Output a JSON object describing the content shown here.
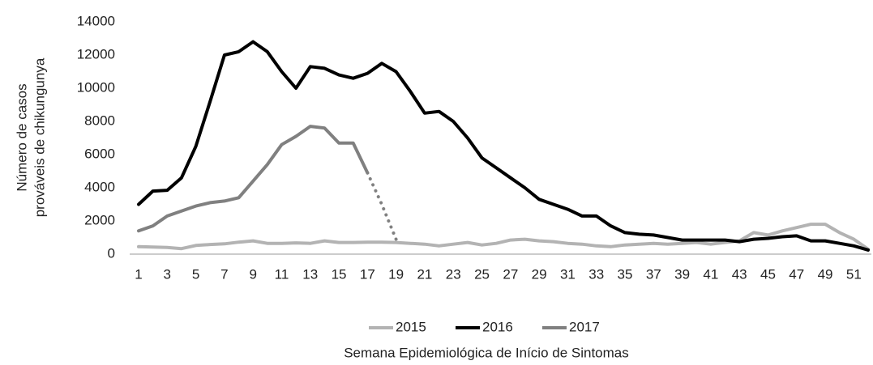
{
  "chart_data": {
    "type": "line",
    "ylabel": [
      "Número de casos",
      "prováveis de chikungunya"
    ],
    "xlabel": "Semana Epidemiológica de Início de Sintomas",
    "x": [
      1,
      2,
      3,
      4,
      5,
      6,
      7,
      8,
      9,
      10,
      11,
      12,
      13,
      14,
      15,
      16,
      17,
      18,
      19,
      20,
      21,
      22,
      23,
      24,
      25,
      26,
      27,
      28,
      29,
      30,
      31,
      32,
      33,
      34,
      35,
      36,
      37,
      38,
      39,
      40,
      41,
      42,
      43,
      44,
      45,
      46,
      47,
      48,
      49,
      50,
      51,
      52
    ],
    "xlim": [
      1,
      52
    ],
    "xticks": [
      1,
      3,
      5,
      7,
      9,
      11,
      13,
      15,
      17,
      19,
      21,
      23,
      25,
      27,
      29,
      31,
      33,
      35,
      37,
      39,
      41,
      43,
      45,
      47,
      49,
      51
    ],
    "ylim": [
      0,
      14000
    ],
    "yticks": [
      0,
      2000,
      4000,
      6000,
      8000,
      10000,
      12000,
      14000
    ],
    "grid": false,
    "legend": "bottom",
    "series": [
      {
        "name": "2015",
        "color": "#b3b3b3",
        "values": [
          450,
          430,
          400,
          330,
          520,
          580,
          620,
          720,
          800,
          650,
          650,
          680,
          650,
          800,
          700,
          700,
          720,
          720,
          700,
          650,
          600,
          500,
          600,
          700,
          550,
          650,
          850,
          900,
          800,
          750,
          650,
          600,
          500,
          450,
          550,
          600,
          650,
          600,
          650,
          700,
          600,
          700,
          800,
          1300,
          1150,
          1400,
          1600,
          1800,
          1800,
          1300,
          900,
          300
        ]
      },
      {
        "name": "2016",
        "color": "#000000",
        "values": [
          3000,
          3800,
          3850,
          4600,
          6500,
          9200,
          12000,
          12200,
          12800,
          12200,
          11000,
          10000,
          11300,
          11200,
          10800,
          10600,
          10900,
          11500,
          11000,
          9800,
          8500,
          8600,
          8000,
          7000,
          5800,
          5200,
          4600,
          4000,
          3300,
          3000,
          2700,
          2300,
          2300,
          1700,
          1300,
          1200,
          1150,
          1000,
          850,
          850,
          850,
          850,
          750,
          900,
          950,
          1050,
          1100,
          800,
          800,
          650,
          500,
          250
        ]
      },
      {
        "name": "2017",
        "color": "#808080",
        "dotted_from": 16,
        "values": [
          1400,
          1700,
          2300,
          2600,
          2900,
          3100,
          3200,
          3400,
          4400,
          5400,
          6600,
          7100,
          7700,
          7600,
          6700,
          6700,
          4900,
          3000,
          900,
          null,
          null,
          null,
          null,
          null,
          null,
          null,
          null,
          null,
          null,
          null,
          null,
          null,
          null,
          null,
          null,
          null,
          null,
          null,
          null,
          null,
          null,
          null,
          null,
          null,
          null,
          null,
          null,
          null,
          null,
          null,
          null,
          null
        ]
      }
    ]
  }
}
